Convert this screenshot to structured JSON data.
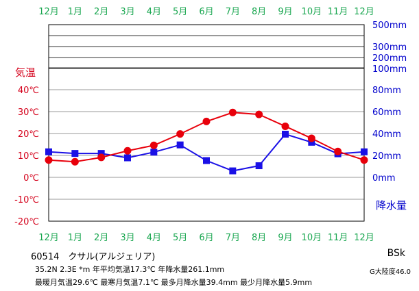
{
  "station": {
    "header": "60514　クサル(アルジェリア)",
    "stats_line1": "35.2N  2.3E  *m  年平均気温17.3℃  年降水量261.1mm",
    "stats_line2": "最暖月気温29.6℃ 最寒月気温7.1℃ 最多月降水量39.4mm 最少月降水量5.9mm",
    "climate_class": "BSk",
    "continentality": "G大陸度46.0"
  },
  "colors": {
    "temperature": "#e8000b",
    "precipitation": "#1a10e6",
    "temp_label": "#d4001a",
    "precip_label": "#0000cc",
    "month_label": "#18a64f",
    "frame": "#000000"
  },
  "chart_data": {
    "type": "line",
    "x_labels": [
      "12月",
      "1月",
      "2月",
      "3月",
      "4月",
      "5月",
      "6月",
      "7月",
      "8月",
      "9月",
      "10月",
      "11月",
      "12月"
    ],
    "series": [
      {
        "axis": "left",
        "marker": "circle",
        "values": [
          7.9,
          7.1,
          9.1,
          12.1,
          14.6,
          19.8,
          25.5,
          29.6,
          28.7,
          23.3,
          17.8,
          11.8,
          7.9
        ]
      },
      {
        "axis": "right",
        "marker": "square",
        "values": [
          23.3,
          21.8,
          21.8,
          17.8,
          23.0,
          29.6,
          15.3,
          5.9,
          10.6,
          39.4,
          32.0,
          21.5,
          23.3
        ]
      }
    ],
    "left_axis": {
      "title": "気温",
      "ticks": [
        "40℃",
        "30℃",
        "20℃",
        "10℃",
        "0℃",
        "-10℃",
        "-20℃"
      ],
      "tick_values": [
        40,
        30,
        20,
        10,
        0,
        -10,
        -20
      ],
      "range": [
        -20,
        40
      ]
    },
    "right_axis": {
      "title": "降水量",
      "ticks": [
        "500mm",
        "300mm",
        "200mm",
        "100mm",
        "80mm",
        "60mm",
        "40mm",
        "20mm",
        "0mm"
      ],
      "tick_values": [
        500,
        300,
        200,
        100,
        80,
        60,
        40,
        20,
        0
      ],
      "linear_range": [
        0,
        80
      ],
      "scale": "piecewise: linear 0-100mm, compressed above 100mm"
    },
    "grid": "horizontal"
  }
}
